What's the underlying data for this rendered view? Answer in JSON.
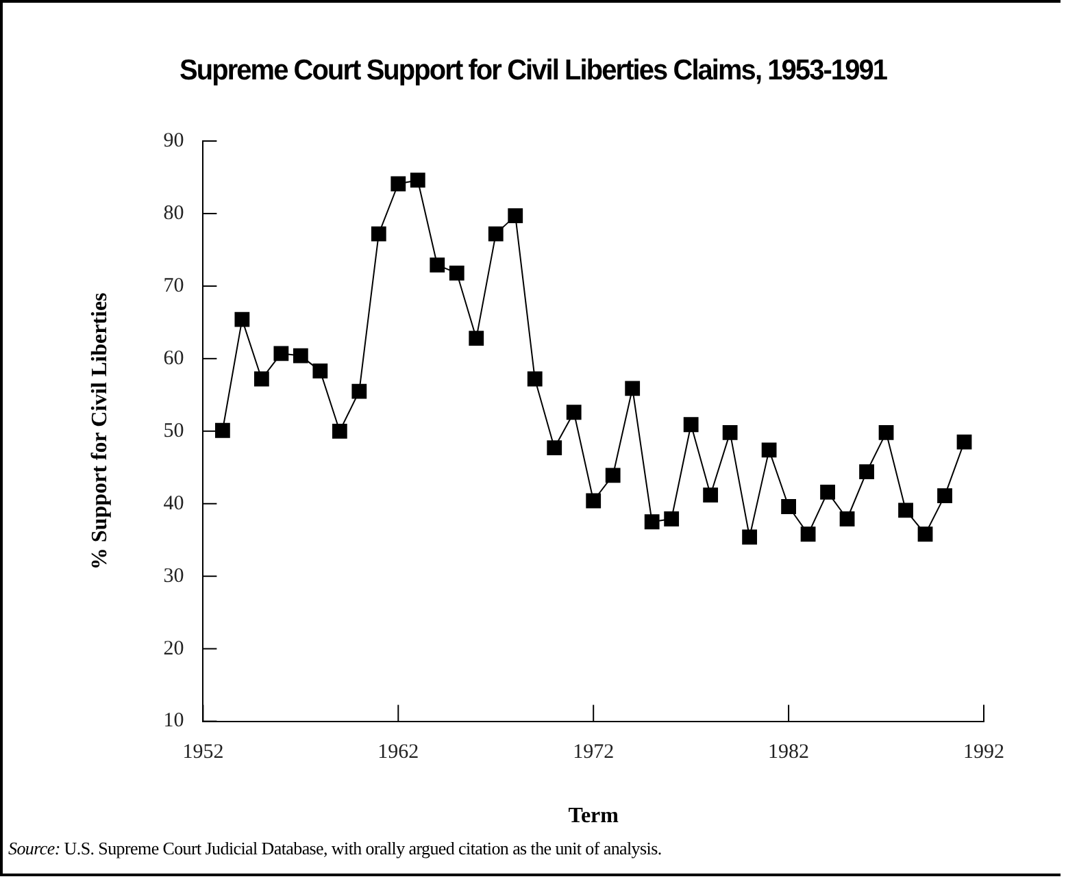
{
  "chart_data": {
    "type": "line",
    "title": "Supreme Court Support for Civil Liberties Claims, 1953-1991",
    "xlabel": "Term",
    "ylabel": "% Support for Civil Liberties",
    "x": [
      1953,
      1954,
      1955,
      1956,
      1957,
      1958,
      1959,
      1960,
      1961,
      1962,
      1963,
      1964,
      1965,
      1966,
      1967,
      1968,
      1969,
      1970,
      1971,
      1972,
      1973,
      1974,
      1975,
      1976,
      1977,
      1978,
      1979,
      1980,
      1981,
      1982,
      1983,
      1984,
      1985,
      1986,
      1987,
      1988,
      1989,
      1990,
      1991
    ],
    "series": [
      {
        "color": "#000000",
        "values": [
          50.1,
          65.4,
          57.2,
          60.7,
          60.4,
          58.3,
          50,
          55.5,
          77.2,
          84.1,
          84.6,
          72.9,
          71.8,
          62.8,
          77.2,
          79.7,
          57.2,
          47.7,
          52.6,
          40.4,
          43.9,
          55.9,
          37.5,
          37.9,
          50.9,
          41.2,
          49.8,
          35.4,
          47.4,
          39.6,
          35.8,
          41.6,
          37.9,
          44.4,
          49.8,
          39.1,
          35.8,
          41.1,
          48.5
        ]
      }
    ],
    "xlim": [
      1952,
      1992
    ],
    "xticks": [
      1952,
      1962,
      1972,
      1982,
      1992
    ],
    "ylim": [
      10,
      90
    ],
    "yticks": [
      10,
      20,
      30,
      40,
      50,
      60,
      70,
      80,
      90
    ],
    "marker": "square",
    "line_style": "solid",
    "grid": false,
    "legend": false,
    "annotations": [
      "Source: U.S. Supreme Court Judicial Database, with orally argued citation as the unit of analysis."
    ]
  }
}
